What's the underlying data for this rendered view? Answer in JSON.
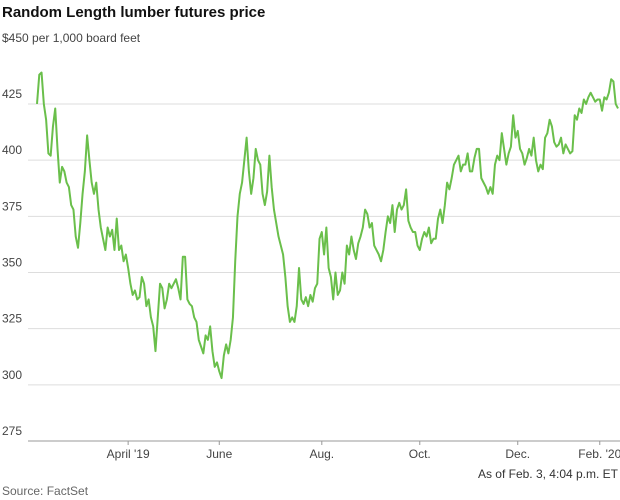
{
  "chart_data": {
    "type": "line",
    "title": "Random Length lumber futures price",
    "note": "As of Feb. 3, 4:04 p.m. ET",
    "source": "Source: FactSet",
    "series": [
      {
        "name": "Random Length lumber futures",
        "color": "#6abf4b",
        "values": [
          425,
          438,
          439,
          425,
          418,
          403,
          402,
          415,
          423,
          405,
          390,
          397,
          395,
          390,
          388,
          380,
          378,
          366,
          361,
          372,
          385,
          395,
          411,
          400,
          390,
          385,
          390,
          378,
          370,
          365,
          360,
          370,
          366,
          369,
          360,
          374,
          360,
          362,
          355,
          358,
          352,
          345,
          340,
          342,
          338,
          339,
          348,
          345,
          335,
          338,
          330,
          326,
          315,
          330,
          345,
          343,
          334,
          338,
          345,
          343,
          345,
          347,
          343,
          338,
          357,
          357,
          338,
          336,
          335,
          330,
          328,
          320,
          317,
          314,
          322,
          320,
          326,
          315,
          308,
          310,
          306,
          303,
          313,
          318,
          314,
          320,
          330,
          355,
          375,
          385,
          390,
          400,
          410,
          395,
          385,
          392,
          405,
          400,
          398,
          385,
          380,
          386,
          402,
          388,
          378,
          372,
          366,
          362,
          358,
          348,
          335,
          328,
          330,
          328,
          335,
          352,
          338,
          336,
          339,
          335,
          340,
          337,
          343,
          345,
          365,
          368,
          358,
          370,
          352,
          348,
          338,
          350,
          340,
          342,
          350,
          345,
          362,
          358,
          366,
          360,
          356,
          363,
          366,
          370,
          378,
          376,
          370,
          372,
          362,
          360,
          358,
          355,
          360,
          368,
          375,
          372,
          380,
          368,
          378,
          381,
          378,
          380,
          387,
          373,
          370,
          368,
          368,
          362,
          360,
          365,
          368,
          366,
          370,
          363,
          365,
          365,
          374,
          378,
          372,
          380,
          390,
          387,
          392,
          398,
          400,
          402,
          395,
          398,
          398,
          403,
          395,
          395,
          401,
          405,
          405,
          392,
          390,
          388,
          385,
          388,
          385,
          398,
          402,
          400,
          412,
          405,
          398,
          403,
          406,
          420,
          410,
          413,
          405,
          403,
          398,
          401,
          405,
          402,
          410,
          400,
          395,
          398,
          396,
          410,
          412,
          418,
          415,
          408,
          406,
          407,
          410,
          403,
          407,
          405,
          403,
          404,
          420,
          418,
          423,
          421,
          427,
          425,
          428,
          430,
          428,
          426,
          427,
          427,
          422,
          428,
          427,
          430,
          436,
          435,
          425,
          423
        ]
      }
    ],
    "xticks": [
      {
        "value": 40,
        "label": "April '19"
      },
      {
        "value": 80,
        "label": "June"
      },
      {
        "value": 125,
        "label": "Aug."
      },
      {
        "value": 168,
        "label": "Oct."
      },
      {
        "value": 211,
        "label": "Dec."
      },
      {
        "value": 247,
        "label": "Feb. '20"
      }
    ],
    "ylim": [
      275,
      450
    ],
    "yticks": [
      275,
      300,
      325,
      350,
      375,
      400,
      425,
      {
        "value": 450,
        "label": "$450 per 1,000 board feet"
      }
    ],
    "grid": true
  }
}
